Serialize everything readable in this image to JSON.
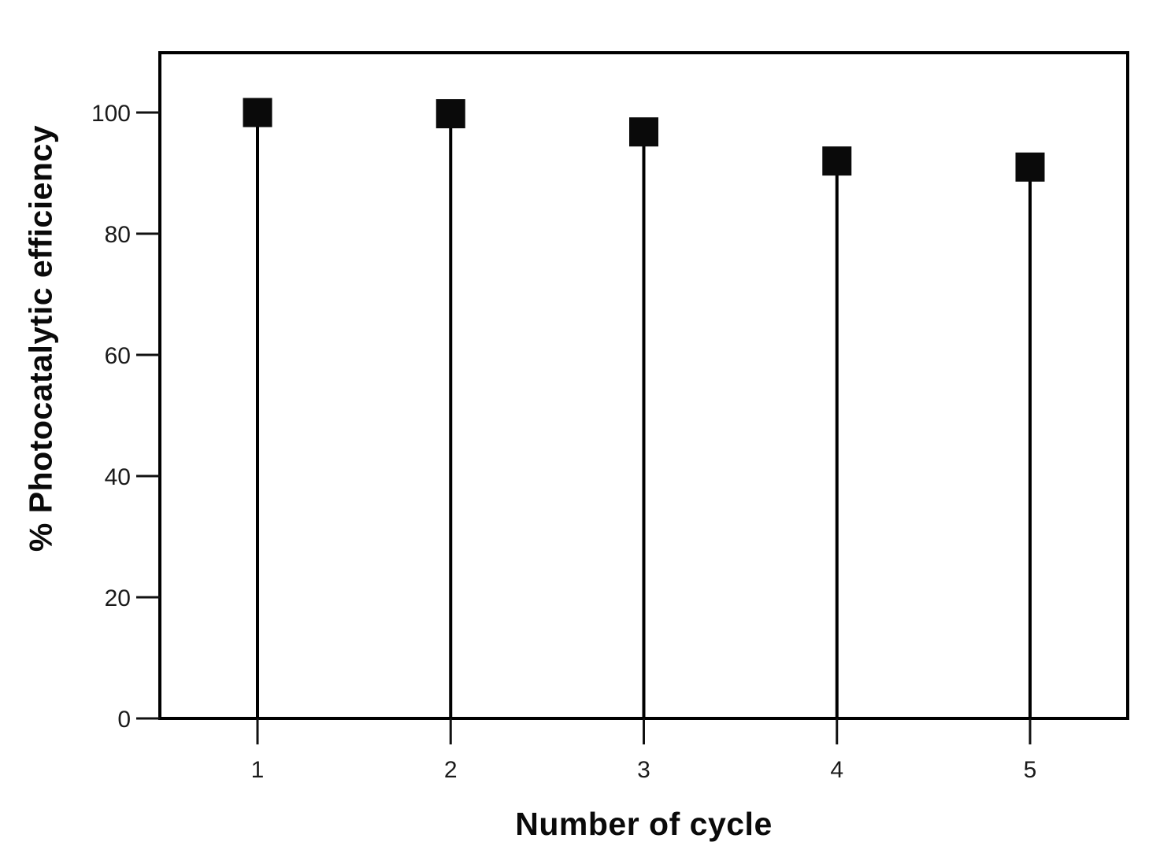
{
  "chart_data": {
    "type": "scatter",
    "subtype": "stem-lollipop",
    "title": "",
    "xlabel": "Number of cycle",
    "ylabel": "% Photocatalytic efficiency",
    "x": [
      1,
      2,
      3,
      4,
      5
    ],
    "values": [
      100,
      99.8,
      96.8,
      92,
      91
    ],
    "series": [
      {
        "name": "% Photocatalytic efficiency",
        "values": [
          100,
          99.8,
          96.8,
          92,
          91
        ]
      }
    ],
    "x_tick_labels": [
      "1",
      "2",
      "3",
      "4",
      "5"
    ],
    "y_tick_labels": [
      "0",
      "20",
      "40",
      "60",
      "80",
      "100"
    ],
    "y_ticks": [
      0,
      20,
      40,
      60,
      80,
      100
    ],
    "xlim": [
      0.5,
      5.5
    ],
    "ylim": [
      0,
      110
    ],
    "grid": false,
    "legend_position": "none",
    "marker_shape": "filled-square",
    "colors": {
      "background": "#ffffff",
      "frame": "#000000",
      "stem": "#000000",
      "marker": "#0a0a0a",
      "tick": "#111111",
      "tick_label": "#1a1a1a",
      "axis_title": "#0a0a0a"
    }
  }
}
